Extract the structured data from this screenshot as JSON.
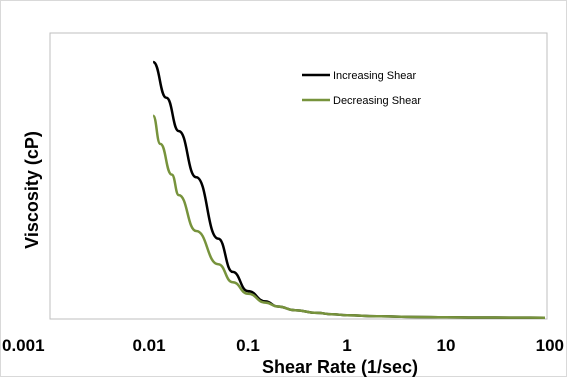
{
  "chart_data": {
    "type": "line",
    "title": "",
    "xlabel": "Shear Rate (1/sec)",
    "ylabel": "Viscosity (cP)",
    "x_scale": "log",
    "xlim": [
      0.001,
      100
    ],
    "x_ticks": [
      "0.001",
      "0.01",
      "0.1",
      "1",
      "10",
      "100"
    ],
    "y_tick_labels": false,
    "grid": false,
    "legend_position": "top-right",
    "series": [
      {
        "name": "Increasing Shear",
        "color": "#000000",
        "x": [
          0.011,
          0.015,
          0.02,
          0.03,
          0.05,
          0.07,
          0.1,
          0.15,
          0.2,
          0.3,
          0.5,
          0.7,
          1,
          2,
          5,
          10,
          20,
          50,
          100
        ],
        "y": [
          1.0,
          0.86,
          0.73,
          0.55,
          0.31,
          0.18,
          0.105,
          0.065,
          0.045,
          0.03,
          0.02,
          0.015,
          0.011,
          0.007,
          0.004,
          0.003,
          0.002,
          0.0015,
          0.001
        ]
      },
      {
        "name": "Decreasing Shear",
        "color": "#77933c",
        "x": [
          0.011,
          0.013,
          0.017,
          0.02,
          0.03,
          0.05,
          0.07,
          0.1,
          0.15,
          0.2,
          0.3,
          0.5,
          0.7,
          1,
          2,
          5,
          10,
          20,
          50,
          100
        ],
        "y": [
          0.79,
          0.68,
          0.56,
          0.48,
          0.34,
          0.21,
          0.14,
          0.095,
          0.06,
          0.045,
          0.03,
          0.02,
          0.015,
          0.011,
          0.007,
          0.004,
          0.003,
          0.002,
          0.0015,
          0.001
        ]
      }
    ]
  }
}
